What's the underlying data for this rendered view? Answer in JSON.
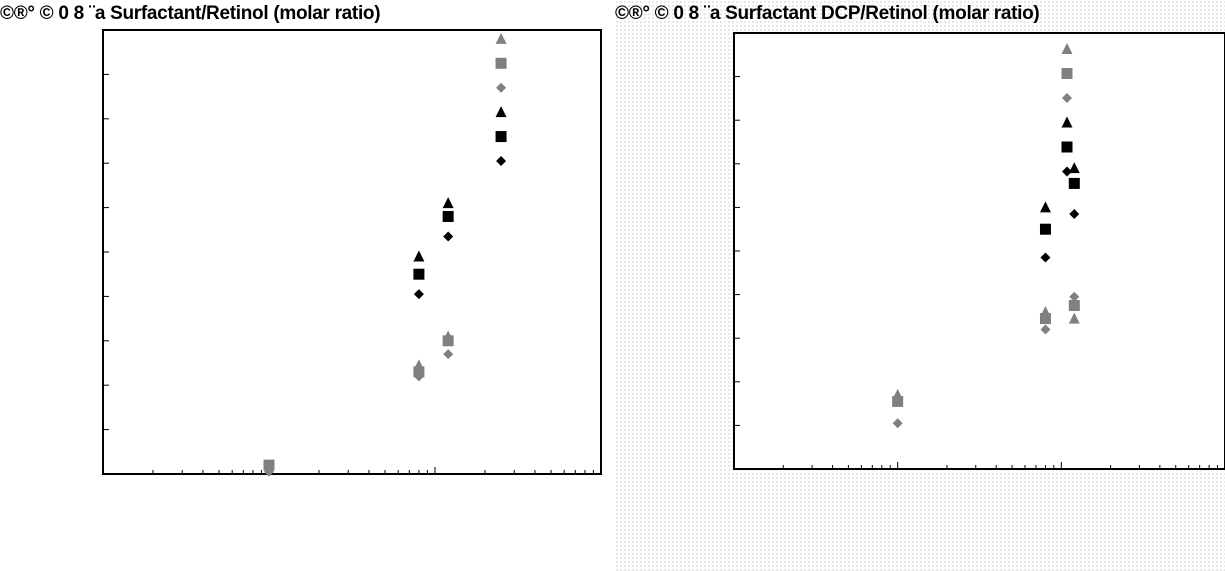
{
  "charts": [
    {
      "title": "©®° © 0 8 ¨a Surfactant/Retinol (molar ratio)"
    },
    {
      "title": "©®° © 0 8 ¨a Surfactant DCP/Retinol (molar ratio)"
    }
  ],
  "chart_data": [
    {
      "type": "scatter",
      "title": "©®° © 0 8 ¨a Surfactant/Retinol (molar ratio)",
      "x_scale": "log",
      "xlim": [
        0.01,
        10
      ],
      "ylim": [
        0,
        10
      ],
      "colors": {
        "gray": "#808080",
        "black": "#000000"
      },
      "series": [
        {
          "marker": "triangle",
          "color": "gray",
          "x": [
            0.1,
            0.8,
            1.2,
            2.5
          ],
          "y": [
            0.2,
            2.45,
            3.1,
            9.8
          ]
        },
        {
          "marker": "square",
          "color": "gray",
          "x": [
            0.1,
            0.8,
            1.2,
            2.5
          ],
          "y": [
            0.2,
            2.3,
            3.0,
            9.25
          ]
        },
        {
          "marker": "diamond",
          "color": "gray",
          "x": [
            0.1,
            0.8,
            1.2,
            2.5
          ],
          "y": [
            0.05,
            2.2,
            2.7,
            8.7
          ]
        },
        {
          "marker": "triangle",
          "color": "black",
          "x": [
            0.8,
            1.2,
            2.5
          ],
          "y": [
            4.9,
            6.1,
            8.15
          ]
        },
        {
          "marker": "square",
          "color": "black",
          "x": [
            0.8,
            1.2,
            2.5
          ],
          "y": [
            4.5,
            5.8,
            7.6
          ]
        },
        {
          "marker": "diamond",
          "color": "black",
          "x": [
            0.8,
            1.2,
            2.5
          ],
          "y": [
            4.05,
            5.35,
            7.05
          ]
        }
      ]
    },
    {
      "type": "scatter",
      "title": "©®° © 0 8 ¨a Surfactant DCP/Retinol (molar ratio)",
      "x_scale": "log",
      "xlim": [
        0.01,
        10
      ],
      "ylim": [
        0,
        10
      ],
      "colors": {
        "gray": "#808080",
        "black": "#000000"
      },
      "series": [
        {
          "marker": "triangle",
          "color": "gray",
          "x": [
            0.1,
            0.8,
            1.2
          ],
          "y": [
            1.7,
            3.6,
            3.45
          ]
        },
        {
          "marker": "square",
          "color": "gray",
          "x": [
            0.1,
            0.8,
            1.2
          ],
          "y": [
            1.55,
            3.45,
            3.75
          ]
        },
        {
          "marker": "diamond",
          "color": "gray",
          "x": [
            0.1,
            0.8,
            1.2
          ],
          "y": [
            1.05,
            3.2,
            3.95
          ]
        },
        {
          "marker": "triangle",
          "color": "black",
          "x": [
            0.8,
            1.2
          ],
          "y": [
            6.0,
            6.9
          ]
        },
        {
          "marker": "square",
          "color": "black",
          "x": [
            0.8,
            1.2
          ],
          "y": [
            5.5,
            6.55
          ]
        },
        {
          "marker": "diamond",
          "color": "black",
          "x": [
            0.8,
            1.2
          ],
          "y": [
            4.85,
            5.85
          ]
        }
      ],
      "legend": {
        "placement": "top-right"
      }
    }
  ]
}
